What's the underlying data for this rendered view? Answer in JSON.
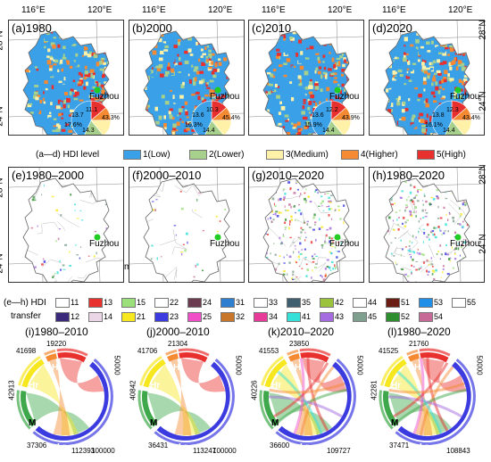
{
  "coords": {
    "lon_left": "116°E",
    "lon_right": "120°E",
    "lat_top": "28°N",
    "lat_bottom": "24°N"
  },
  "city": "Fuzhou",
  "panels": [
    {
      "label": "(a)1980",
      "type": "level",
      "pie": [
        "43.3%",
        "17.6%",
        "14.3",
        "11.1",
        "13.7"
      ]
    },
    {
      "label": "(b)2000",
      "type": "level",
      "pie": [
        "45.4%",
        "16.3%",
        "14.4",
        "10.3",
        "13.6"
      ]
    },
    {
      "label": "(c)2010",
      "type": "level",
      "pie": [
        "43.9%",
        "15.9%",
        "14.4",
        "12.2",
        "13.6"
      ]
    },
    {
      "label": "(d)2020",
      "type": "level",
      "pie": [
        "43.4%",
        "16.1%",
        "14.4",
        "12.3",
        "13.8"
      ]
    },
    {
      "label": "(e)1980–2000",
      "type": "transfer"
    },
    {
      "label": "(f)2000–2010",
      "type": "transfer"
    },
    {
      "label": "(g)2010–2020",
      "type": "transfer"
    },
    {
      "label": "(h)1980–2020",
      "type": "transfer"
    }
  ],
  "scale": {
    "labels": [
      "0",
      "75",
      "150"
    ],
    "unit": "km"
  },
  "level_legend": {
    "title": "(a—d) HDI level",
    "items": [
      {
        "label": "1(Low)",
        "color": "#3aa0e8"
      },
      {
        "label": "2(Lower)",
        "color": "#a8d08d"
      },
      {
        "label": "3(Medium)",
        "color": "#fff2a8"
      },
      {
        "label": "4(Higher)",
        "color": "#f58a33"
      },
      {
        "label": "5(High)",
        "color": "#e8312f"
      }
    ]
  },
  "transfer_legend": {
    "title1": "(e—h) HDI",
    "title2": "transfer",
    "row1": [
      {
        "code": "11",
        "color": "#ffffff"
      },
      {
        "code": "13",
        "color": "#e8312f"
      },
      {
        "code": "15",
        "color": "#9be07a"
      },
      {
        "code": "22",
        "color": "#ffffff"
      },
      {
        "code": "24",
        "color": "#6b3c4f"
      },
      {
        "code": "31",
        "color": "#2f7fd0"
      },
      {
        "code": "33",
        "color": "#ffffff"
      },
      {
        "code": "35",
        "color": "#3f5f6f"
      },
      {
        "code": "42",
        "color": "#9cc33c"
      },
      {
        "code": "44",
        "color": "#ffffff"
      },
      {
        "code": "51",
        "color": "#6a1d12"
      },
      {
        "code": "53",
        "color": "#1f8fe8"
      },
      {
        "code": "55",
        "color": "#ffffff"
      }
    ],
    "row2": [
      {
        "code": "12",
        "color": "#3b2a7a"
      },
      {
        "code": "14",
        "color": "#ead6e6"
      },
      {
        "code": "21",
        "color": "#f7e71e"
      },
      {
        "code": "23",
        "color": "#3c3be0"
      },
      {
        "code": "25",
        "color": "#f04fc8"
      },
      {
        "code": "32",
        "color": "#c8762a"
      },
      {
        "code": "34",
        "color": "#e83a98"
      },
      {
        "code": "41",
        "color": "#35e0d8"
      },
      {
        "code": "43",
        "color": "#a46ce0"
      },
      {
        "code": "45",
        "color": "#7fa08f"
      },
      {
        "code": "52",
        "color": "#2f8f2f"
      },
      {
        "code": "54",
        "color": "#c76a98"
      }
    ]
  },
  "chords": [
    {
      "title": "(i)1980–2010",
      "labels": [
        "19220",
        "41698",
        "42913",
        "37306",
        "112393",
        "100000",
        "50000"
      ]
    },
    {
      "title": "(j)2000–2010",
      "labels": [
        "21304",
        "41706",
        "40842",
        "36431",
        "113247",
        "100000",
        "50000"
      ]
    },
    {
      "title": "(k)2010–2020",
      "labels": [
        "23850",
        "41553",
        "40226",
        "36600",
        "109727",
        "50000"
      ]
    },
    {
      "title": "(l)1980–2020",
      "labels": [
        "21760",
        "41525",
        "42281",
        "37471",
        "108843",
        "50000"
      ]
    }
  ],
  "segments": [
    "H",
    "Hr",
    "M",
    "Lr",
    "L"
  ]
}
